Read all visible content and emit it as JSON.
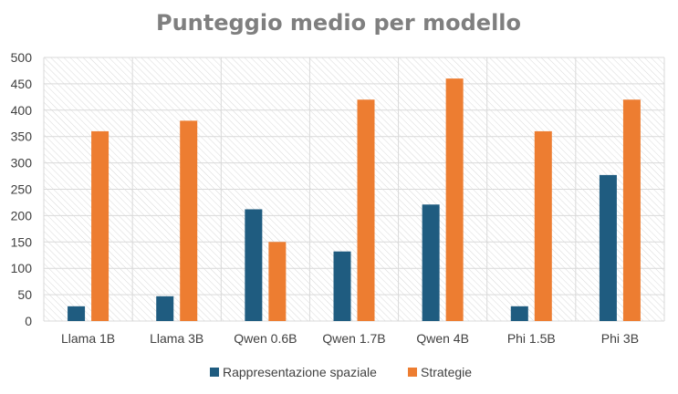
{
  "chart_data": {
    "type": "bar",
    "title": "Punteggio medio per modello",
    "categories": [
      "Llama 1B",
      "Llama 3B",
      "Qwen 0.6B",
      "Qwen 1.7B",
      "Qwen 4B",
      "Phi 1.5B",
      "Phi 3B"
    ],
    "series": [
      {
        "name": "Rappresentazione spaziale",
        "color": "#1f5c80",
        "values": [
          28,
          47,
          212,
          132,
          221,
          28,
          277
        ]
      },
      {
        "name": "Strategie",
        "color": "#ed7d31",
        "values": [
          360,
          380,
          150,
          420,
          460,
          360,
          420
        ]
      }
    ],
    "ylim": [
      0,
      500
    ],
    "yticks": [
      0,
      50,
      100,
      150,
      200,
      250,
      300,
      350,
      400,
      450,
      500
    ],
    "grid": true,
    "plot_background": "diagonal-hatch",
    "legend_position": "bottom"
  }
}
